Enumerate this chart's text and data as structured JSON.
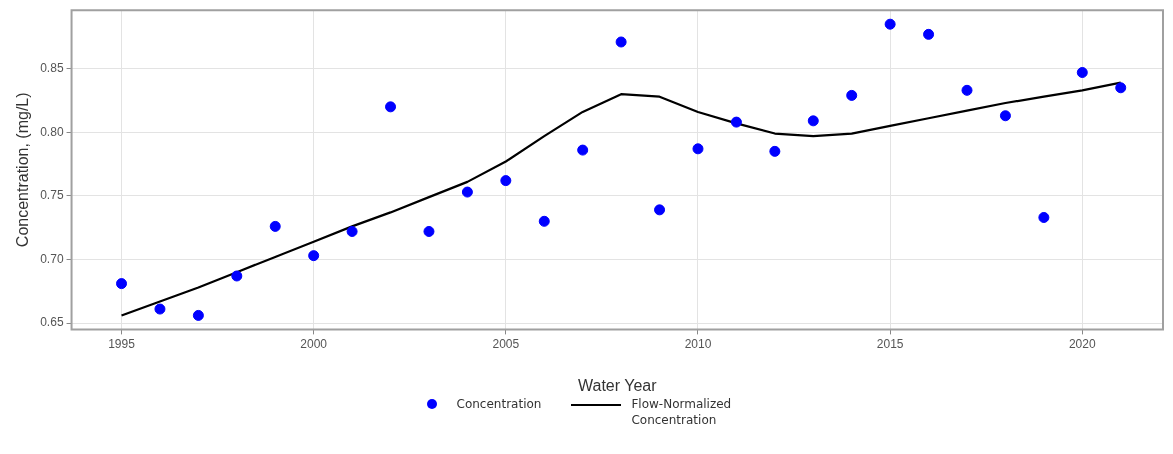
{
  "chart_data": {
    "type": "scatter",
    "xlabel": "Water Year",
    "ylabel": "Concentration, (mg/L)",
    "x": [
      1995,
      1996,
      1997,
      1998,
      1999,
      2000,
      2001,
      2002,
      2003,
      2004,
      2005,
      2006,
      2007,
      2008,
      2009,
      2010,
      2011,
      2012,
      2013,
      2014,
      2015,
      2016,
      2017,
      2018,
      2019,
      2020,
      2021
    ],
    "series": [
      {
        "name": "Concentration",
        "color": "#0000ff",
        "marker": "circle",
        "values": [
          0.681,
          0.661,
          0.656,
          0.687,
          0.726,
          0.703,
          0.722,
          0.82,
          0.722,
          0.753,
          0.762,
          0.73,
          0.786,
          0.871,
          0.739,
          0.787,
          0.808,
          0.785,
          0.809,
          0.829,
          0.885,
          0.877,
          0.833,
          0.813,
          0.733,
          0.847,
          0.835
        ]
      },
      {
        "name": "Flow-Normalized Concentration",
        "type": "line",
        "color": "#000000",
        "marker": "none",
        "line_style": "solid",
        "values": [
          0.656,
          0.667,
          0.678,
          0.69,
          0.702,
          0.714,
          0.726,
          0.737,
          0.749,
          0.761,
          0.777,
          0.797,
          0.816,
          0.83,
          0.828,
          0.816,
          0.807,
          0.799,
          0.797,
          0.799,
          0.805,
          0.811,
          0.817,
          0.823,
          0.828,
          0.833,
          0.839
        ]
      }
    ],
    "xlim": [
      1993.7,
      2022.1
    ],
    "xticks": [
      1995,
      2000,
      2005,
      2010,
      2015,
      2020
    ],
    "ylim": [
      0.645,
      0.896
    ],
    "yticks": [
      {
        "value": 0.65,
        "label": "0.65"
      },
      {
        "value": 0.7,
        "label": "0.70"
      },
      {
        "value": 0.75,
        "label": "0.75"
      },
      {
        "value": 0.8,
        "label": "0.80"
      },
      {
        "value": 0.85,
        "label": "0.85"
      }
    ],
    "grid": true,
    "legend": "bottom"
  }
}
